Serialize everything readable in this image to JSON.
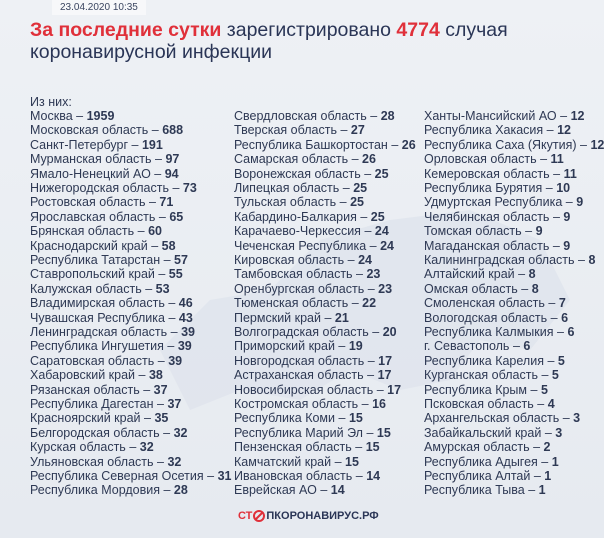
{
  "header": {
    "date": "23.04.2020 10:35",
    "title_lead": "За последние сутки",
    "title_middle": "зарегистрировано",
    "total": 4774,
    "title_end": "случая",
    "title_line2": "коронавирусной инфекции"
  },
  "list": {
    "heading": "Из них:",
    "separator": "–",
    "columns": [
      [
        [
          "Москва",
          1959
        ],
        [
          "Московская область",
          688
        ],
        [
          "Санкт-Петербург",
          191
        ],
        [
          "Мурманская область",
          97
        ],
        [
          "Ямало-Ненецкий АО",
          94
        ],
        [
          "Нижегородская область",
          73
        ],
        [
          "Ростовская область",
          71
        ],
        [
          "Ярославская область",
          65
        ],
        [
          "Брянская область",
          60
        ],
        [
          "Краснодарский край",
          58
        ],
        [
          "Республика Татарстан",
          57
        ],
        [
          "Ставропольский край",
          55
        ],
        [
          "Калужская область",
          53
        ],
        [
          "Владимирская область",
          46
        ],
        [
          "Чувашская Республика",
          43
        ],
        [
          "Ленинградская область",
          39
        ],
        [
          "Республика Ингушетия",
          39
        ],
        [
          "Саратовская область",
          39
        ],
        [
          "Хабаровский край",
          38
        ],
        [
          "Рязанская область",
          37
        ],
        [
          "Республика Дагестан",
          37
        ],
        [
          "Красноярский край",
          35
        ],
        [
          "Белгородская область",
          32
        ],
        [
          "Курская область",
          32
        ],
        [
          "Ульяновская область",
          32
        ],
        [
          "Республика Северная Осетия",
          31
        ],
        [
          "Республика Мордовия",
          28
        ]
      ],
      [
        [
          "Свердловская область",
          28
        ],
        [
          "Тверская область",
          27
        ],
        [
          "Республика Башкортостан",
          26
        ],
        [
          "Самарская область",
          26
        ],
        [
          "Воронежская область",
          25
        ],
        [
          "Липецкая область",
          25
        ],
        [
          "Тульская область",
          25
        ],
        [
          "Кабардино-Балкария",
          25
        ],
        [
          "Карачаево-Черкессия",
          24
        ],
        [
          "Чеченская Республика",
          24
        ],
        [
          "Кировская область",
          24
        ],
        [
          "Тамбовская область",
          23
        ],
        [
          "Оренбургская область",
          23
        ],
        [
          "Тюменская область",
          22
        ],
        [
          "Пермский край",
          21
        ],
        [
          "Волгоградская область",
          20
        ],
        [
          "Приморский край",
          19
        ],
        [
          "Новгородская область",
          17
        ],
        [
          "Астраханская область",
          17
        ],
        [
          "Новосибирская область",
          17
        ],
        [
          "Костромская область",
          16
        ],
        [
          "Республика Коми",
          15
        ],
        [
          "Республика Марий Эл",
          15
        ],
        [
          "Пензенская область",
          15
        ],
        [
          "Камчатский край",
          15
        ],
        [
          "Ивановская область",
          14
        ],
        [
          "Еврейская АО",
          14
        ]
      ],
      [
        [
          "Ханты-Мансийский АО",
          12
        ],
        [
          "Республика Хакасия",
          12
        ],
        [
          "Республика Саха (Якутия)",
          12
        ],
        [
          "Орловская область",
          11
        ],
        [
          "Кемеровская область",
          11
        ],
        [
          "Республика Бурятия",
          10
        ],
        [
          "Удмуртская Республика",
          9
        ],
        [
          "Челябинская область",
          9
        ],
        [
          "Томская область",
          9
        ],
        [
          "Магаданская область",
          9
        ],
        [
          "Калининградская область",
          8
        ],
        [
          "Алтайский край",
          8
        ],
        [
          "Омская область",
          8
        ],
        [
          "Смоленская область",
          7
        ],
        [
          "Вологодская область",
          6
        ],
        [
          "Республика Калмыкия",
          6
        ],
        [
          "г. Севастополь",
          6
        ],
        [
          "Республика Карелия",
          5
        ],
        [
          "Курганская область",
          5
        ],
        [
          "Республика Крым",
          5
        ],
        [
          "Псковская область",
          4
        ],
        [
          "Архангельская область",
          3
        ],
        [
          "Забайкальский край",
          3
        ],
        [
          "Амурская область",
          2
        ],
        [
          "Республика Адыгея",
          1
        ],
        [
          "Республика Алтай",
          1
        ],
        [
          "Республика Тыва",
          1
        ]
      ]
    ]
  },
  "footer": {
    "logo_left": "СТ",
    "logo_right": "ПКОРОНАВИРУС.РФ"
  }
}
